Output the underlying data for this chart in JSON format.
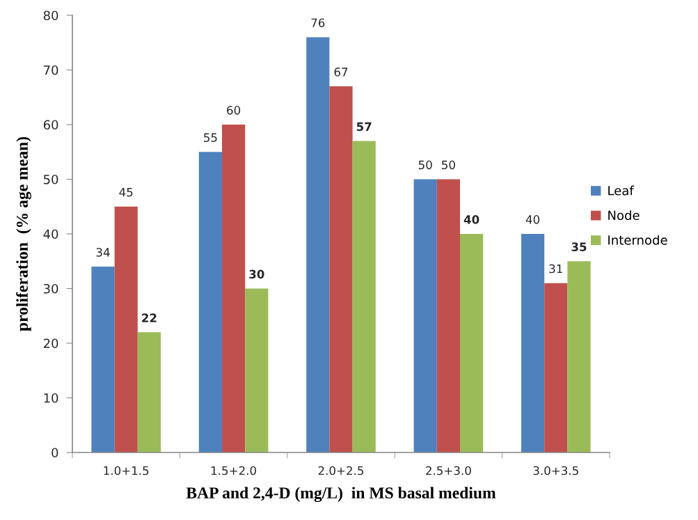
{
  "chart_data": {
    "type": "bar",
    "xlabel": "BAP and 2,4-D (mg/L)  in MS basal medium",
    "ylabel": "proliferation  (% age mean)",
    "categories": [
      "1.0+1.5",
      "1.5+2.0",
      "2.0+2.5",
      "2.5+3.0",
      "3.0+3.5"
    ],
    "series": [
      {
        "name": "Leaf",
        "color": "#4f81bd",
        "values": [
          34,
          55,
          76,
          50,
          40
        ]
      },
      {
        "name": "Node",
        "color": "#c0504d",
        "values": [
          45,
          60,
          67,
          50,
          31
        ]
      },
      {
        "name": "Internode",
        "color": "#9bbb59",
        "values": [
          22,
          30,
          57,
          40,
          35
        ]
      }
    ],
    "ylim": [
      0,
      80
    ],
    "yticks": [
      0,
      10,
      20,
      30,
      40,
      50,
      60,
      70,
      80
    ],
    "data_labels": true,
    "grid": false,
    "legend": "right"
  }
}
